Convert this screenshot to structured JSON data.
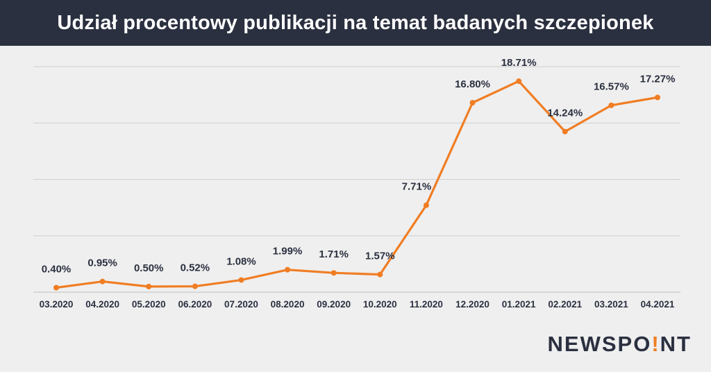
{
  "header": {
    "title": "Udział procentowy publikacji na temat badanych szczepionek"
  },
  "brand": {
    "logo_left": "NEWSPO",
    "logo_accent": "!",
    "logo_right": "NT",
    "accent_color": "#f07d23",
    "text_color": "#2b3040"
  },
  "chart_data": {
    "type": "line",
    "title": "Udział procentowy publikacji na temat badanych szczepionek",
    "xlabel": "",
    "ylabel": "",
    "categories": [
      "03.2020",
      "04.2020",
      "05.2020",
      "06.2020",
      "07.2020",
      "08.2020",
      "09.2020",
      "10.2020",
      "11.2020",
      "12.2020",
      "01.2021",
      "02.2021",
      "03.2021",
      "04.2021"
    ],
    "series": [
      {
        "values": [
          0.4,
          0.95,
          0.5,
          0.52,
          1.08,
          1.99,
          1.71,
          1.57,
          7.71,
          16.8,
          18.71,
          14.24,
          16.57,
          17.27
        ],
        "labels": [
          "0.40%",
          "0.95%",
          "0.50%",
          "0.52%",
          "1.08%",
          "1.99%",
          "1.71%",
          "1.57%",
          "7.71%",
          "16.80%",
          "18.71%",
          "14.24%",
          "16.57%",
          "17.27%"
        ],
        "color": "#f07d23"
      }
    ],
    "ylim": [
      0,
      20
    ],
    "y_gridlines": [
      0,
      5,
      10,
      15,
      20
    ],
    "grid": true,
    "y_tick_labels_shown": false,
    "legend": "none"
  }
}
